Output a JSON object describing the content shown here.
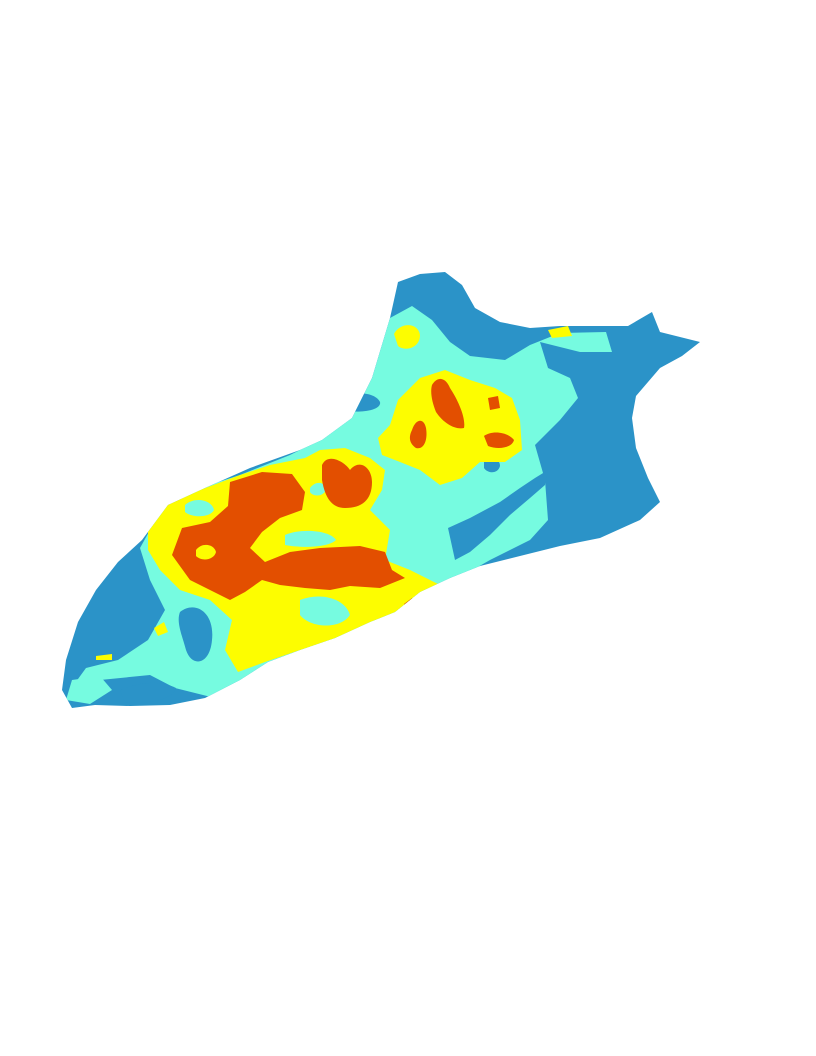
{
  "map": {
    "classes": [
      {
        "id": "class-1",
        "color": "#2b93c8"
      },
      {
        "id": "class-2",
        "color": "#76fbe0"
      },
      {
        "id": "class-3",
        "color": "#fdfd00"
      },
      {
        "id": "class-4",
        "color": "#e34f00"
      }
    ],
    "background": "#ffffff"
  }
}
